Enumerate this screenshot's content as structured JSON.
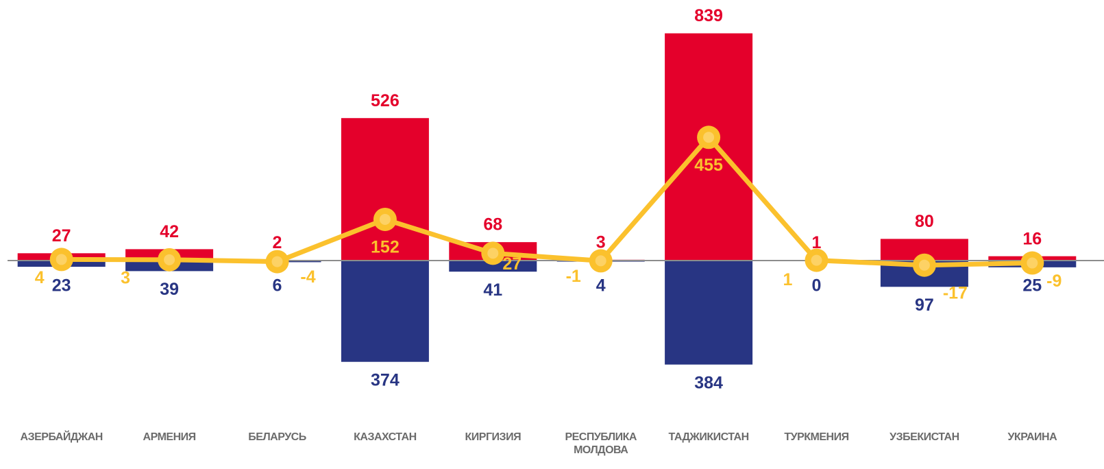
{
  "chart_data": {
    "type": "bar-line",
    "categories": [
      "АЗЕРБАЙДЖАН",
      "АРМЕНИЯ",
      "БЕЛАРУСЬ",
      "КАЗАХСТАН",
      "КИРГИЗИЯ",
      "РЕСПУБЛИКА МОЛДОВА",
      "ТАДЖИКИСТАН",
      "ТУРКМЕНИЯ",
      "УЗБЕКИСТАН",
      "УКРАИНА"
    ],
    "series": [
      {
        "kind": "bar",
        "color": "#e4002b",
        "values": [
          27,
          42,
          2,
          526,
          68,
          3,
          839,
          1,
          80,
          16
        ]
      },
      {
        "kind": "bar",
        "color": "#283583",
        "values": [
          -23,
          -39,
          -6,
          -374,
          -41,
          -4,
          -384,
          0,
          -97,
          -25
        ],
        "value_labels": [
          "23",
          "39",
          "6",
          "374",
          "41",
          "4",
          "384",
          "0",
          "97",
          "25"
        ]
      },
      {
        "kind": "line",
        "color": "#fbc12d",
        "values": [
          4,
          3,
          -4,
          152,
          27,
          -1,
          455,
          1,
          -17,
          -9
        ]
      }
    ],
    "ylim": [
      -500,
      900
    ]
  }
}
